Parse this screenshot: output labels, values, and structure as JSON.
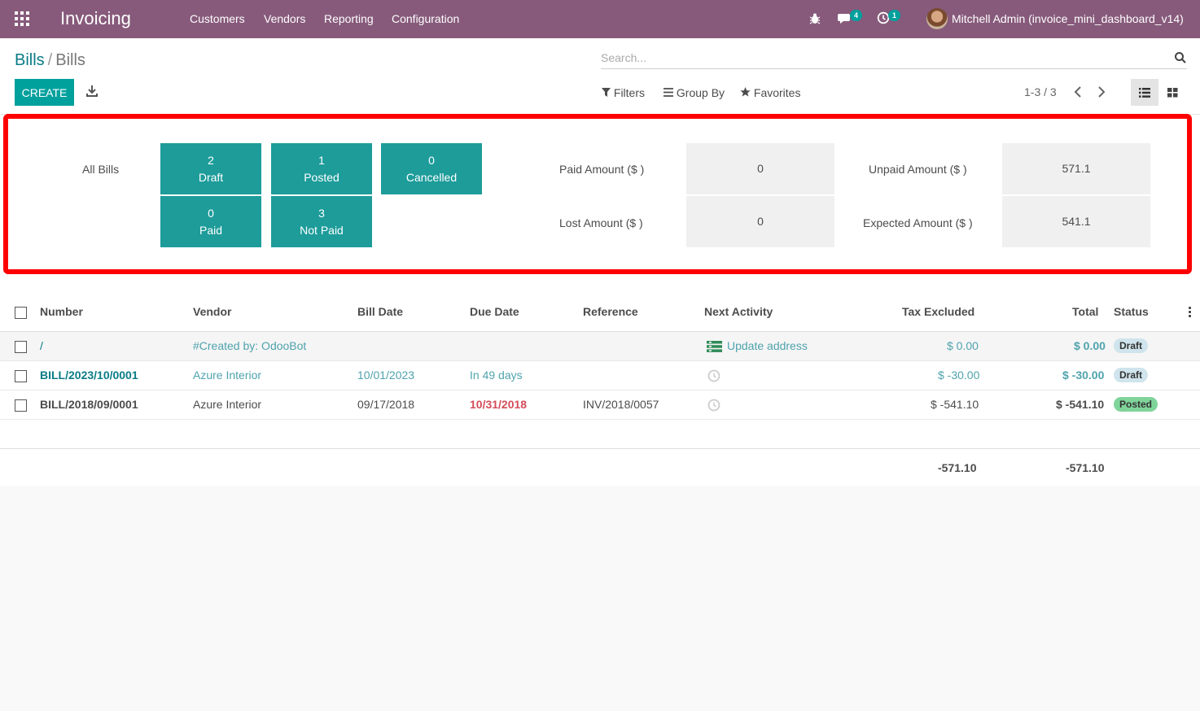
{
  "navbar": {
    "app_name": "Invoicing",
    "menu": [
      "Customers",
      "Vendors",
      "Reporting",
      "Configuration"
    ],
    "messages_count": "4",
    "activities_count": "1",
    "user": "Mitchell Admin (invoice_mini_dashboard_v14)",
    "color": "#875a7b"
  },
  "breadcrumb": {
    "parent": "Bills",
    "separator": "/",
    "current": "Bills"
  },
  "toolbar": {
    "create_label": "CREATE",
    "search_placeholder": "Search...",
    "filters_label": "Filters",
    "group_by_label": "Group By",
    "favorites_label": "Favorites",
    "pager": "1-3 / 3"
  },
  "dashboard": {
    "all_bills_label": "All Bills",
    "tiles": [
      {
        "count": "2",
        "label": "Draft"
      },
      {
        "count": "1",
        "label": "Posted"
      },
      {
        "count": "0",
        "label": "Cancelled"
      },
      {
        "count": "0",
        "label": "Paid"
      },
      {
        "count": "3",
        "label": "Not Paid"
      }
    ],
    "stats": [
      {
        "label": "Paid Amount ($ )",
        "value": "0"
      },
      {
        "label": "Unpaid Amount ($ )",
        "value": "571.1"
      },
      {
        "label": "Lost Amount ($ )",
        "value": "0"
      },
      {
        "label": "Expected Amount ($ )",
        "value": "541.1"
      }
    ],
    "tile_color": "#1d9c9a",
    "highlight_color": "#ff0000"
  },
  "table": {
    "columns": [
      "Number",
      "Vendor",
      "Bill Date",
      "Due Date",
      "Reference",
      "Next Activity",
      "Tax Excluded",
      "Total",
      "Status"
    ],
    "rows": [
      {
        "number": "/",
        "vendor": "#Created by: OdooBot",
        "bill_date": "",
        "due_date": "",
        "reference": "",
        "next_activity": "Update address",
        "tax_excluded": "$ 0.00",
        "total": "$ 0.00",
        "status": "Draft"
      },
      {
        "number": "BILL/2023/10/0001",
        "vendor": "Azure Interior",
        "bill_date": "10/01/2023",
        "due_date": "In 49 days",
        "reference": "",
        "next_activity": "",
        "tax_excluded": "$ -30.00",
        "total": "$ -30.00",
        "status": "Draft"
      },
      {
        "number": "BILL/2018/09/0001",
        "vendor": "Azure Interior",
        "bill_date": "09/17/2018",
        "due_date": "10/31/2018",
        "reference": "INV/2018/0057",
        "next_activity": "",
        "tax_excluded": "$ -541.10",
        "total": "$ -541.10",
        "status": "Posted"
      }
    ],
    "totals": {
      "tax_excluded": "-571.10",
      "total": "-571.10"
    }
  }
}
